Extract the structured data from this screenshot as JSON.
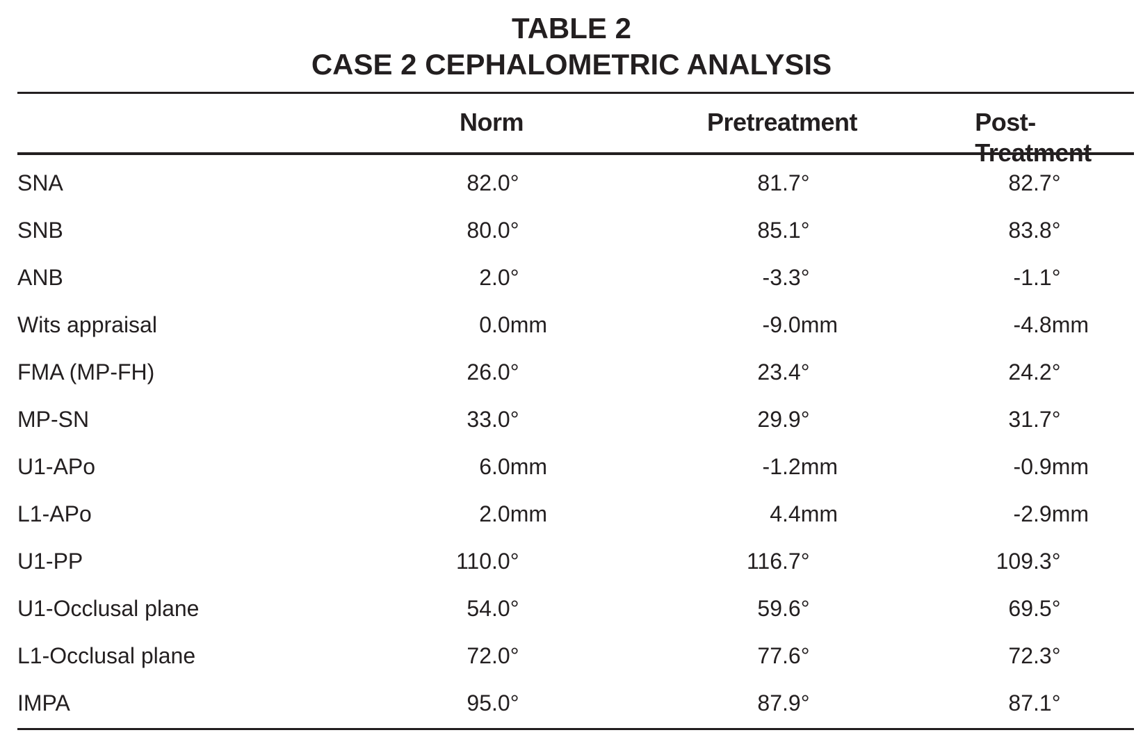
{
  "header": {
    "title": "TABLE 2",
    "subtitle": "CASE 2 CEPHALOMETRIC ANALYSIS"
  },
  "table": {
    "columns": [
      "Norm",
      "Pretreatment",
      "Post-Treatment"
    ],
    "rows": [
      [
        "SNA",
        "82.0°",
        "81.7°",
        "82.7°"
      ],
      [
        "SNB",
        "80.0°",
        "85.1°",
        "83.8°"
      ],
      [
        "ANB",
        "2.0°",
        "-3.3°",
        "-1.1°"
      ],
      [
        "Wits appraisal",
        "0.0mm",
        "-9.0mm",
        "-4.8mm"
      ],
      [
        "FMA (MP-FH)",
        "26.0°",
        "23.4°",
        "24.2°"
      ],
      [
        "MP-SN",
        "33.0°",
        "29.9°",
        "31.7°"
      ],
      [
        "U1-APo",
        "6.0mm",
        "-1.2mm",
        "-0.9mm"
      ],
      [
        "L1-APo",
        "2.0mm",
        "4.4mm",
        "-2.9mm"
      ],
      [
        "U1-PP",
        "110.0°",
        "116.7°",
        "109.3°"
      ],
      [
        "U1-Occlusal plane",
        "54.0°",
        "59.6°",
        "69.5°"
      ],
      [
        "L1-Occlusal plane",
        "72.0°",
        "77.6°",
        "72.3°"
      ],
      [
        "IMPA",
        "95.0°",
        "87.9°",
        "87.1°"
      ]
    ]
  }
}
